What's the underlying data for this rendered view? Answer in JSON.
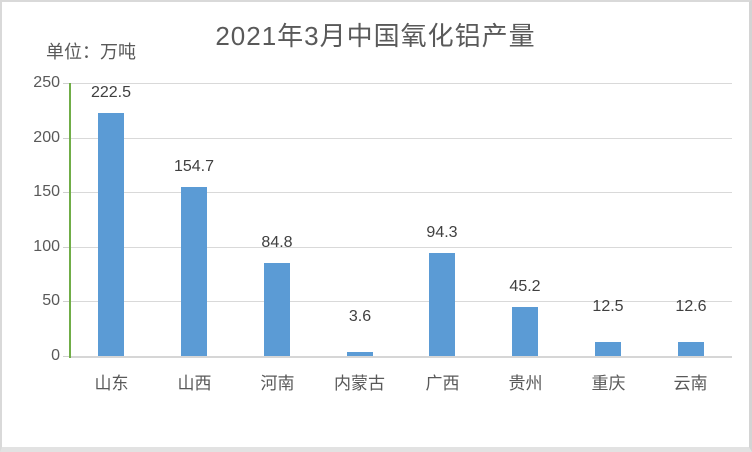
{
  "title": "2021年3月中国氧化铝产量",
  "unit_label": "单位：万吨",
  "chart_data": {
    "type": "bar",
    "title": "2021年3月中国氧化铝产量",
    "unit_label": "单位：万吨",
    "categories": [
      "山东",
      "山西",
      "河南",
      "内蒙古",
      "广西",
      "贵州",
      "重庆",
      "云南"
    ],
    "values": [
      222.5,
      154.7,
      84.8,
      3.6,
      94.3,
      45.2,
      12.5,
      12.6
    ],
    "value_labels": [
      "222.5",
      "154.7",
      "84.8",
      "3.6",
      "94.3",
      "45.2",
      "12.5",
      "12.6"
    ],
    "xlabel": "",
    "ylabel": "单位：万吨",
    "ylim": [
      0,
      250
    ],
    "yticks": [
      0,
      50,
      100,
      150,
      200,
      250
    ],
    "grid": true,
    "legend": false,
    "colors": {
      "bar": "#5b9bd5",
      "y_axis_line": "#70ad47",
      "gridline": "#d9d9d9",
      "text": "#595959",
      "data_label_text": "#404040",
      "background": "#ffffff"
    }
  }
}
